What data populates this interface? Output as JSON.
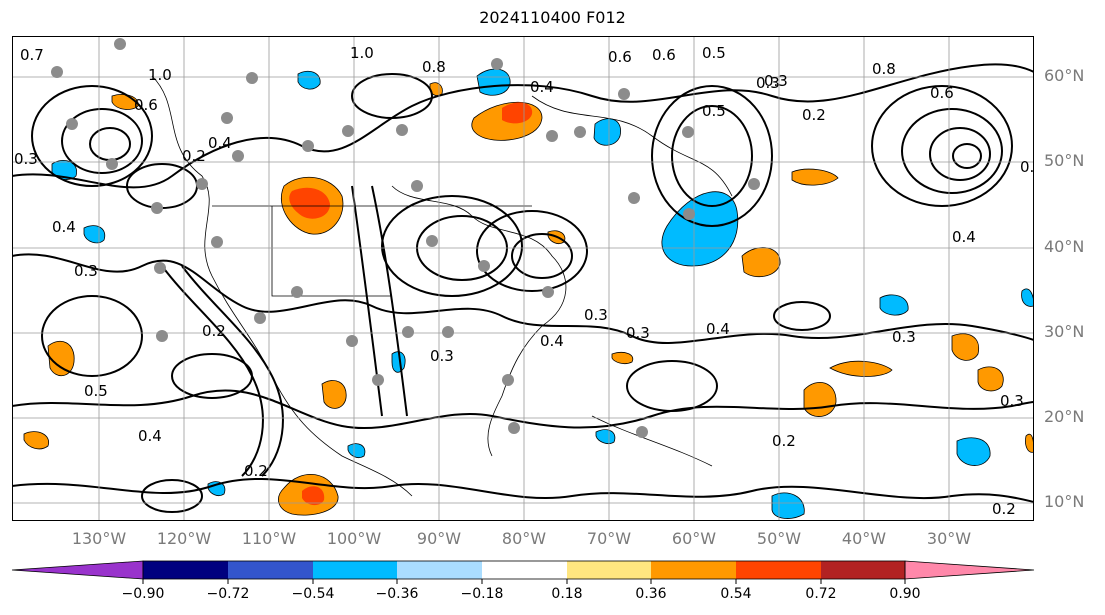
{
  "title": "2024110400 F012",
  "map": {
    "lat_labels": [
      "60°N",
      "50°N",
      "40°N",
      "30°N",
      "20°N",
      "10°N"
    ],
    "lon_labels": [
      "130°W",
      "120°W",
      "110°W",
      "100°W",
      "90°W",
      "80°W",
      "70°W",
      "60°W",
      "50°W",
      "40°W",
      "30°W"
    ],
    "contour_labels": [
      "0.7",
      "1.0",
      "0.6",
      "0.4",
      "0.3",
      "0.4",
      "0.3",
      "0.5",
      "0.4",
      "0.2",
      "1.0",
      "0.8",
      "0.3",
      "0.4",
      "0.6",
      "0.5",
      "0.3",
      "0.2",
      "0.6",
      "0.8",
      "0.4",
      "0.3",
      "0.3",
      "0.2",
      "0.2",
      "0.3",
      "0.3",
      "0.4",
      "0.3",
      "0.2",
      "0.3",
      "0.6",
      "0.5",
      "0.2",
      "0.4"
    ],
    "colors": {
      "land_lines": "#000000",
      "grid": "#9a9a9a",
      "dots": "#8c8c8c"
    }
  },
  "colorbar": {
    "ticks": [
      "−0.90",
      "−0.72",
      "−0.54",
      "−0.36",
      "−0.18",
      "0.18",
      "0.36",
      "0.54",
      "0.72",
      "0.90"
    ],
    "colors": [
      "#9933cc",
      "#00007f",
      "#3355cc",
      "#00bbff",
      "#aaddff",
      "#ffffff",
      "#ffe680",
      "#ff9900",
      "#ff4400",
      "#b22222",
      "#ff88aa"
    ]
  }
}
